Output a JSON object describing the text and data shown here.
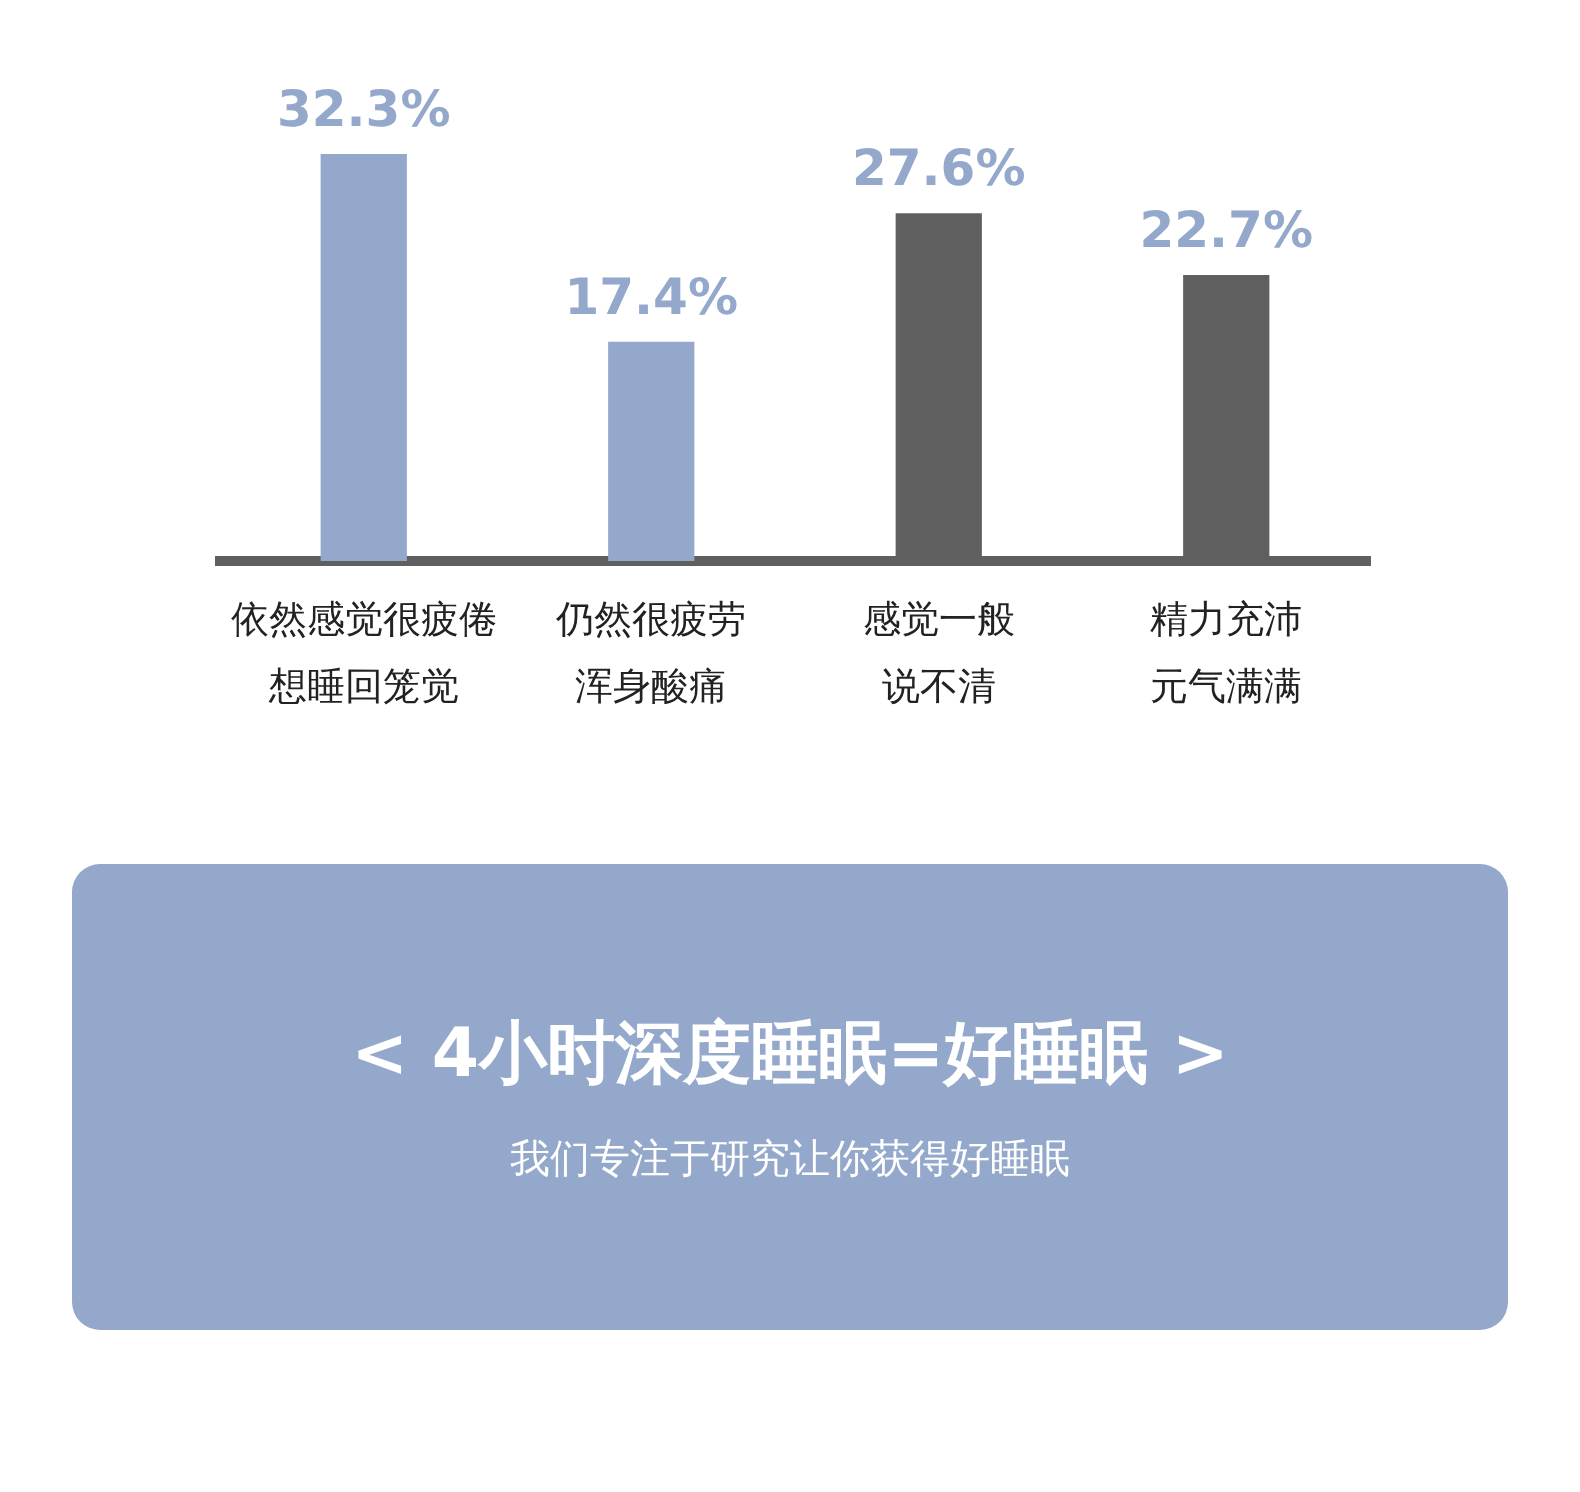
{
  "chart_data": {
    "type": "bar",
    "categories": [
      "依然感觉很疲倦想睡回笼觉",
      "仍然很疲劳浑身酸痛",
      "感觉一般说不清",
      "精力充沛元气满满"
    ],
    "values": [
      32.3,
      17.4,
      27.6,
      22.7
    ],
    "colors": [
      "#93a8ca",
      "#93a8ca",
      "#5f5f5f",
      "#5f5f5f"
    ],
    "value_labels": [
      "32.3%",
      "17.4%",
      "27.6%",
      "22.7%"
    ],
    "grid": false,
    "legend": false,
    "annotations": [
      "< 4小时深度睡眠=好睡眠 >",
      "我们专注于研究让你获得好睡眠"
    ]
  }
}
